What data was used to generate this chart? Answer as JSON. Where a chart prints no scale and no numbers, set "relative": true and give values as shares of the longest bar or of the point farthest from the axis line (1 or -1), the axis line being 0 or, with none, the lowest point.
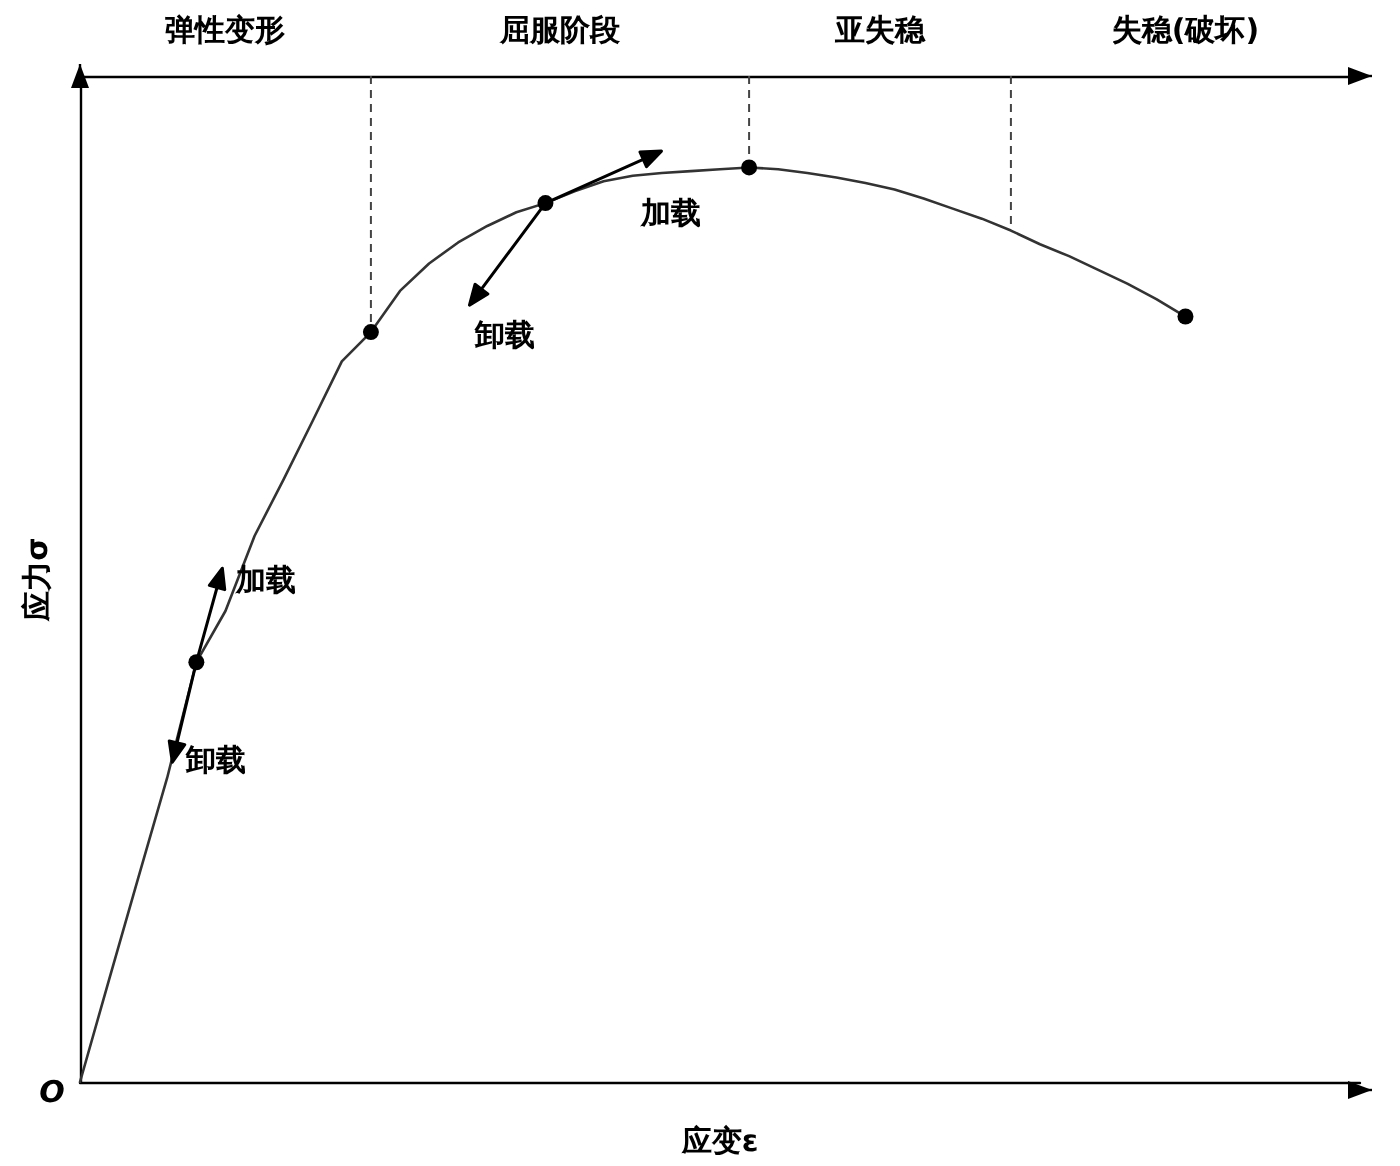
{
  "chart_data": {
    "type": "line",
    "relative": true,
    "xlabel": "应变ε",
    "ylabel": "应力σ",
    "marker": "none",
    "grid": false,
    "tick_labels": false,
    "categories": [
      null,
      null,
      null,
      null,
      null,
      null,
      null,
      null,
      null,
      null,
      null,
      null,
      null,
      null,
      null,
      null,
      null,
      null,
      null,
      null,
      null,
      null,
      null,
      null,
      null,
      null,
      null,
      null,
      null,
      null,
      null,
      null,
      null,
      null,
      null,
      null,
      null,
      null,
      null,
      null,
      null,
      null,
      null,
      null,
      null
    ],
    "series": [
      {
        "color": "#333333",
        "values": [
          0,
          0.112,
          0.223,
          0.333,
          0.459,
          0.515,
          0.597,
          0.659,
          0.723,
          0.788,
          0.82,
          0.865,
          0.895,
          0.918,
          0.936,
          0.951,
          0.961,
          0.974,
          0.985,
          0.991,
          0.994,
          0.996,
          0.998,
          1,
          0.998,
          0.994,
          0.989,
          0.983,
          0.976,
          0.966,
          0.955,
          0.944,
          0.931,
          0.916,
          0.903,
          0.888,
          0.873,
          0.856,
          0.837,
          null,
          null,
          null,
          null,
          null,
          null
        ]
      }
    ],
    "annotations": [
      "弹性变形",
      "屈服阶段",
      "亚失稳",
      "失稳(破坏)",
      "加载",
      "卸载",
      "加载",
      "卸载",
      "O"
    ]
  }
}
